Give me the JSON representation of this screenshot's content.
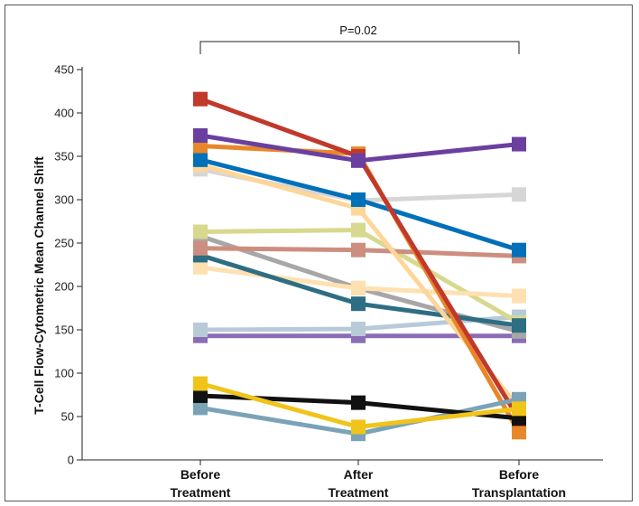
{
  "chart_data": {
    "type": "line",
    "categories": [
      "Before Treatment",
      "After Treatment",
      "Before Transplantation"
    ],
    "category_lines": [
      [
        "Before",
        "Treatment"
      ],
      [
        "After",
        "Treatment"
      ],
      [
        "Before",
        "Transplantation"
      ]
    ],
    "ylabel": "T-Cell Flow-Cytometric Mean Channel Shift",
    "ylim": [
      0,
      450
    ],
    "yticks": [
      0,
      50,
      100,
      150,
      200,
      250,
      300,
      350,
      400,
      450
    ],
    "annotation": "P=0.02",
    "grid": false,
    "legend": "none",
    "series": [
      {
        "color": "#8a6db5",
        "values": [
          143,
          143,
          143
        ]
      },
      {
        "color": "#b8cad8",
        "values": [
          150,
          151,
          165
        ]
      },
      {
        "color": "#a7a7a7",
        "values": [
          258,
          198,
          148
        ]
      },
      {
        "color": "#d8d88e",
        "values": [
          263,
          265,
          158
        ]
      },
      {
        "color": "#ffe0b0",
        "values": [
          222,
          198,
          189
        ]
      },
      {
        "color": "#2e6e82",
        "values": [
          236,
          180,
          155
        ]
      },
      {
        "color": "#cd8e80",
        "values": [
          244,
          242,
          235
        ]
      },
      {
        "color": "#d6d6d6",
        "values": [
          335,
          299,
          306
        ]
      },
      {
        "color": "#ffd699",
        "values": [
          340,
          290,
          60
        ]
      },
      {
        "color": "#0070b8",
        "values": [
          346,
          300,
          242
        ]
      },
      {
        "color": "#e8872a",
        "values": [
          362,
          353,
          32
        ]
      },
      {
        "color": "#c0392b",
        "values": [
          416,
          350,
          47
        ]
      },
      {
        "color": "#6b3fa0",
        "values": [
          374,
          345,
          364
        ]
      },
      {
        "color": "#7aa3b8",
        "values": [
          60,
          30,
          70
        ]
      },
      {
        "color": "#111111",
        "values": [
          74,
          66,
          48
        ]
      },
      {
        "color": "#f0c419",
        "values": [
          88,
          38,
          59
        ]
      }
    ]
  }
}
